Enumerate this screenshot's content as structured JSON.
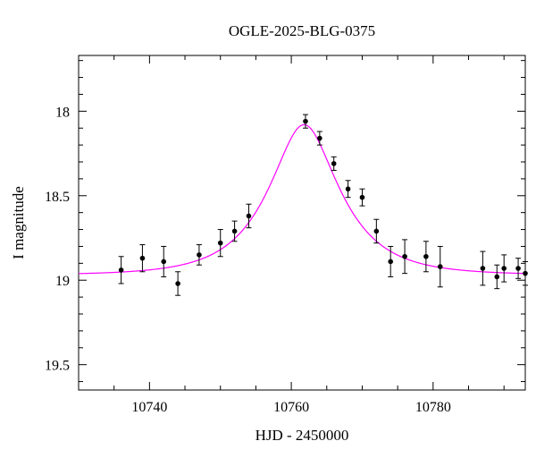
{
  "chart_data": {
    "type": "scatter",
    "title": "OGLE-2025-BLG-0375",
    "xlabel": "HJD - 2450000",
    "ylabel": "I magnitude",
    "xlim": [
      10730,
      10793
    ],
    "ylim": [
      19.65,
      17.67
    ],
    "y_inverted": true,
    "x_ticks": [
      10740,
      10760,
      10780
    ],
    "y_ticks": [
      18,
      18.5,
      19,
      19.5
    ],
    "x_tick_labels": [
      "10740",
      "10760",
      "10780"
    ],
    "y_tick_labels": [
      "18",
      "18.5",
      "19",
      "19.5"
    ],
    "grid": false,
    "series": [
      {
        "kind": "points",
        "color": "#000000",
        "x": [
          10736,
          10739,
          10742,
          10744,
          10747,
          10750,
          10752,
          10754,
          10762,
          10764,
          10766,
          10768,
          10770,
          10772,
          10774,
          10776,
          10779,
          10781,
          10787,
          10789,
          10790,
          10792,
          10793
        ],
        "y": [
          18.94,
          18.87,
          18.89,
          19.02,
          18.85,
          18.78,
          18.71,
          18.62,
          18.06,
          18.16,
          18.31,
          18.46,
          18.51,
          18.71,
          18.89,
          18.86,
          18.86,
          18.92,
          18.93,
          18.98,
          18.93,
          18.93,
          18.96
        ],
        "err": [
          0.08,
          0.08,
          0.09,
          0.07,
          0.06,
          0.08,
          0.06,
          0.07,
          0.04,
          0.04,
          0.04,
          0.05,
          0.05,
          0.07,
          0.09,
          0.1,
          0.09,
          0.12,
          0.1,
          0.07,
          0.08,
          0.06,
          0.07
        ]
      },
      {
        "kind": "model",
        "color": "#ff00ff",
        "t0": 10761.8,
        "peak_mag": 18.08,
        "base_mag": 18.97,
        "u0": 0.48,
        "tE": 8.7
      }
    ]
  }
}
